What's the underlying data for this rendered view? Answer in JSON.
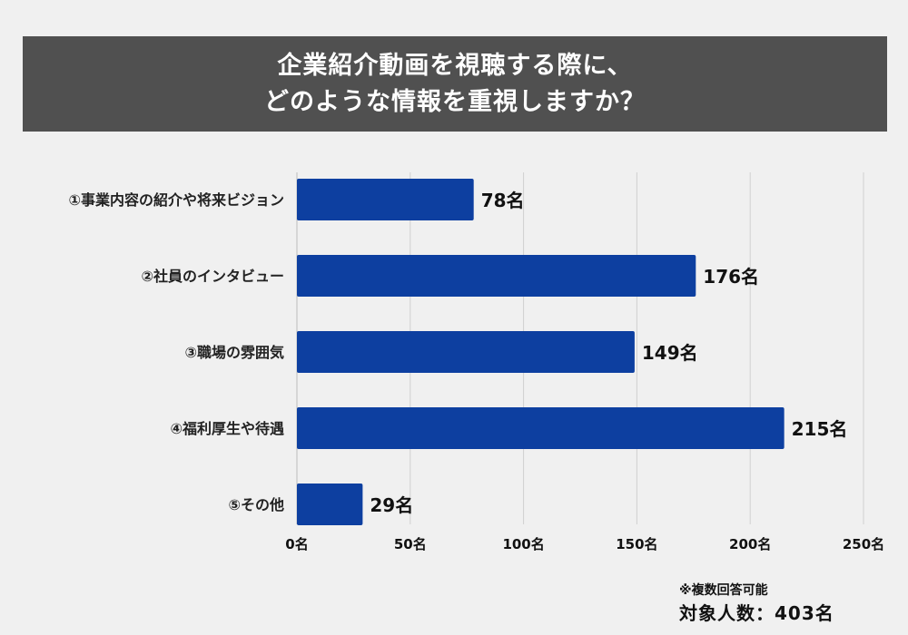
{
  "title_lines": [
    "企業紹介動画を視聴する際に、",
    "どのような情報を重視しますか？"
  ],
  "note": "※複数回答可能",
  "respondents": "対象人数：403名",
  "colors": {
    "bar": "#0d3fa0",
    "title_bg": "#505050",
    "grid": "#d0d0d0"
  },
  "chart_data": {
    "type": "bar",
    "orientation": "horizontal",
    "categories": [
      "①事業内容の紹介や将来ビジョン",
      "②社員のインタビュー",
      "③職場の雰囲気",
      "④福利厚生や待遇",
      "⑤その他"
    ],
    "values": [
      78,
      176,
      149,
      215,
      29
    ],
    "value_labels": [
      "78名",
      "176名",
      "149名",
      "215名",
      "29名"
    ],
    "xlim": [
      0,
      250
    ],
    "ticks": [
      0,
      50,
      100,
      150,
      200,
      250
    ],
    "tick_labels": [
      "0名",
      "50名",
      "100名",
      "150名",
      "200名",
      "250名"
    ],
    "grid": true
  }
}
